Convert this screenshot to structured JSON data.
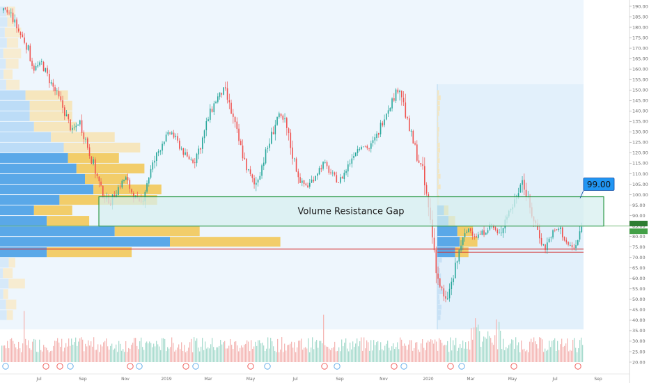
{
  "chart_data": {
    "type": "candlestick",
    "y_axis": {
      "position": "right",
      "min": 20,
      "max": 190,
      "step": 5,
      "tick_labels": [
        "20.00",
        "25.00",
        "30.00",
        "35.00",
        "40.00",
        "45.00",
        "50.00",
        "55.00",
        "60.00",
        "65.00",
        "70.00",
        "75.00",
        "80.00",
        "85.00",
        "90.00",
        "95.00",
        "100.00",
        "105.00",
        "110.00",
        "115.00",
        "120.00",
        "125.00",
        "130.00",
        "135.00",
        "140.00",
        "145.00",
        "150.00",
        "155.00",
        "160.00",
        "165.00",
        "170.00",
        "175.00",
        "180.00",
        "185.00",
        "190.00"
      ]
    },
    "x_axis": {
      "tick_labels": [
        "Jul",
        "Sep",
        "Nov",
        "2019",
        "Mar",
        "May",
        "Jul",
        "Sep",
        "Nov",
        "2020",
        "Mar",
        "May",
        "Jul",
        "Sep"
      ]
    },
    "price_path": [
      [
        0,
        188
      ],
      [
        2,
        186
      ],
      [
        4,
        178
      ],
      [
        6,
        172
      ],
      [
        8,
        160
      ],
      [
        10,
        163
      ],
      [
        12,
        155
      ],
      [
        14,
        148
      ],
      [
        16,
        140
      ],
      [
        18,
        130
      ],
      [
        20,
        135
      ],
      [
        22,
        124
      ],
      [
        24,
        112
      ],
      [
        26,
        100
      ],
      [
        28,
        96
      ],
      [
        30,
        103
      ],
      [
        32,
        108
      ],
      [
        34,
        100
      ],
      [
        36,
        95
      ],
      [
        38,
        108
      ],
      [
        40,
        118
      ],
      [
        42,
        126
      ],
      [
        44,
        130
      ],
      [
        46,
        124
      ],
      [
        48,
        118
      ],
      [
        50,
        116
      ],
      [
        52,
        125
      ],
      [
        54,
        138
      ],
      [
        56,
        146
      ],
      [
        58,
        150
      ],
      [
        60,
        138
      ],
      [
        62,
        124
      ],
      [
        64,
        112
      ],
      [
        66,
        104
      ],
      [
        68,
        115
      ],
      [
        70,
        126
      ],
      [
        72,
        138
      ],
      [
        74,
        134
      ],
      [
        76,
        118
      ],
      [
        78,
        106
      ],
      [
        80,
        104
      ],
      [
        82,
        110
      ],
      [
        84,
        115
      ],
      [
        86,
        110
      ],
      [
        88,
        106
      ],
      [
        90,
        112
      ],
      [
        92,
        120
      ],
      [
        94,
        124
      ],
      [
        96,
        122
      ],
      [
        98,
        128
      ],
      [
        100,
        138
      ],
      [
        102,
        145
      ],
      [
        104,
        152
      ],
      [
        106,
        134
      ],
      [
        108,
        122
      ],
      [
        110,
        110
      ],
      [
        112,
        88
      ],
      [
        114,
        60
      ],
      [
        116,
        48
      ],
      [
        118,
        60
      ],
      [
        120,
        76
      ],
      [
        122,
        84
      ],
      [
        124,
        80
      ],
      [
        126,
        82
      ],
      [
        128,
        86
      ],
      [
        130,
        80
      ],
      [
        132,
        90
      ],
      [
        134,
        96
      ],
      [
        136,
        108
      ],
      [
        138,
        94
      ],
      [
        140,
        84
      ],
      [
        142,
        74
      ],
      [
        144,
        82
      ],
      [
        146,
        84
      ],
      [
        148,
        76
      ],
      [
        150,
        74
      ],
      [
        152,
        86
      ]
    ],
    "volume_profile": [
      {
        "price_low": 70,
        "price_high": 75,
        "up": 11,
        "down": 20
      },
      {
        "price_low": 75,
        "price_high": 80,
        "up": 40,
        "down": 26
      },
      {
        "price_low": 80,
        "price_high": 85,
        "up": 27,
        "down": 20
      },
      {
        "price_low": 85,
        "price_high": 90,
        "up": 11,
        "down": 10
      },
      {
        "price_low": 90,
        "price_high": 95,
        "up": 8,
        "down": 9
      },
      {
        "price_low": 95,
        "price_high": 100,
        "up": 14,
        "down": 23
      },
      {
        "price_low": 100,
        "price_high": 105,
        "up": 22,
        "down": 16
      },
      {
        "price_low": 105,
        "price_high": 110,
        "up": 20,
        "down": 10
      },
      {
        "price_low": 110,
        "price_high": 115,
        "up": 18,
        "down": 16
      },
      {
        "price_low": 115,
        "price_high": 120,
        "up": 16,
        "down": 12
      },
      {
        "price_low": 120,
        "price_high": 125,
        "up": 15,
        "down": 18
      },
      {
        "price_low": 125,
        "price_high": 130,
        "up": 12,
        "down": 15
      },
      {
        "price_low": 130,
        "price_high": 135,
        "up": 8,
        "down": 10
      },
      {
        "price_low": 135,
        "price_high": 140,
        "up": 7,
        "down": 10
      },
      {
        "price_low": 140,
        "price_high": 145,
        "up": 7,
        "down": 10
      },
      {
        "price_low": 145,
        "price_high": 150,
        "up": 6,
        "down": 10
      }
    ],
    "volume_profile_2020": [
      {
        "price_low": 70,
        "price_high": 75,
        "up": 8,
        "down": 6
      },
      {
        "price_low": 75,
        "price_high": 80,
        "up": 10,
        "down": 8
      },
      {
        "price_low": 80,
        "price_high": 85,
        "up": 9,
        "down": 7
      },
      {
        "price_low": 85,
        "price_high": 90,
        "up": 5,
        "down": 3
      },
      {
        "price_low": 90,
        "price_high": 95,
        "up": 3,
        "down": 2
      }
    ],
    "zone": {
      "label": "Volume Resistance Gap",
      "price_low": 85,
      "price_high": 99
    },
    "callout": {
      "label": "99.00",
      "price": 99
    },
    "horizontal_lines": [
      {
        "price": 74,
        "color": "#d32f2f"
      },
      {
        "price": 72.5,
        "color": "#d32f2f"
      },
      {
        "price": 85,
        "color": "#43a047"
      }
    ],
    "colors": {
      "up": "#26a69a",
      "down": "#ef5350",
      "vol_up": "#5aa8e8",
      "vol_down": "#f2cd6a",
      "zone_fill": "#d7efef",
      "zone_stroke": "#2e9a4a",
      "callout_fill": "#2196f3",
      "panel": "#eef6fd"
    }
  }
}
